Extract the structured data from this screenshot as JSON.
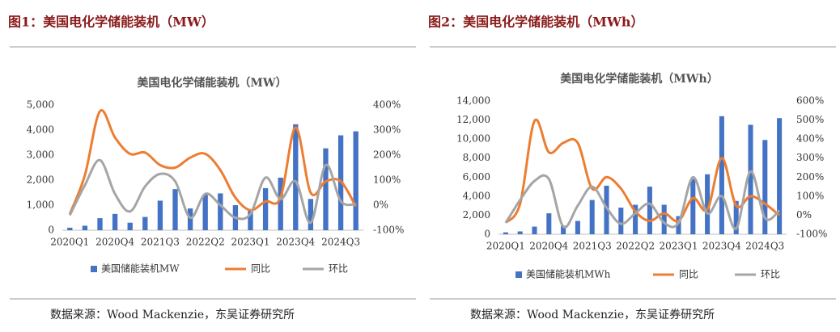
{
  "chart_data": [
    {
      "type": "combo",
      "heading": "图1：美国电化学储能装机（MW）",
      "title": "美国电化学储能装机（MW）",
      "categories": [
        "2020Q1",
        null,
        null,
        "2020Q4",
        null,
        null,
        "2021Q3",
        null,
        null,
        "2022Q2",
        null,
        null,
        "2023Q1",
        null,
        null,
        "2023Q4",
        null,
        null,
        "2024Q3",
        null
      ],
      "series": [
        {
          "name": "美国储能装机MW",
          "type": "bar",
          "color": "#4472c4",
          "values": [
            100,
            180,
            480,
            650,
            300,
            530,
            1180,
            1640,
            870,
            1420,
            1470,
            1000,
            780,
            1680,
            2100,
            4230,
            1250,
            3270,
            3790,
            3950
          ]
        },
        {
          "name": "同比",
          "type": "line",
          "axis": "y2",
          "color": "#ed7d31",
          "values": [
            -35,
            120,
            375,
            270,
            205,
            210,
            160,
            150,
            190,
            205,
            140,
            30,
            -20,
            15,
            30,
            310,
            50,
            95,
            95,
            -5
          ]
        },
        {
          "name": "环比",
          "type": "line",
          "axis": "y2",
          "color": "#a5a5a5",
          "values": [
            -40,
            80,
            180,
            45,
            -25,
            75,
            125,
            95,
            -50,
            45,
            0,
            -50,
            -35,
            110,
            25,
            95,
            -70,
            160,
            16,
            4
          ]
        }
      ],
      "ylim": [
        0,
        5000
      ],
      "yticks": [
        0,
        {
          "value": 1000,
          "label": "1,000"
        },
        {
          "value": 2000,
          "label": "2,000"
        },
        {
          "value": 3000,
          "label": "3,000"
        },
        {
          "value": 4000,
          "label": "4,000"
        },
        {
          "value": 5000,
          "label": "5,000"
        }
      ],
      "y2lim": [
        -100,
        400
      ],
      "y2ticks": [
        {
          "value": -100,
          "label": "-100%"
        },
        {
          "value": 0,
          "label": "0%"
        },
        {
          "value": 100,
          "label": "100%"
        },
        {
          "value": 200,
          "label": "200%"
        },
        {
          "value": 300,
          "label": "300%"
        },
        {
          "value": 400,
          "label": "400%"
        }
      ],
      "source": "数据来源：Wood Mackenzie，东吴证券研究所"
    },
    {
      "type": "combo",
      "heading": "图2：美国电化学储能装机（MWh）",
      "title": "美国电化学储能装机（MWh）",
      "categories": [
        "2020Q1",
        null,
        null,
        "2020Q4",
        null,
        null,
        "2021Q3",
        null,
        null,
        "2022Q2",
        null,
        null,
        "2023Q1",
        null,
        null,
        "2023Q4",
        null,
        null,
        "2024Q3",
        null
      ],
      "series": [
        {
          "name": "美国储能装机MWh",
          "type": "bar",
          "color": "#4472c4",
          "values": [
            200,
            300,
            800,
            2200,
            900,
            1400,
            3600,
            5100,
            2800,
            3100,
            5000,
            3100,
            1900,
            5800,
            6300,
            12400,
            3500,
            11500,
            9900,
            12200
          ]
        },
        {
          "name": "同比",
          "type": "line",
          "axis": "y2",
          "color": "#ed7d31",
          "values": [
            -40,
            60,
            495,
            330,
            380,
            380,
            140,
            200,
            140,
            20,
            -30,
            10,
            -30,
            90,
            30,
            300,
            50,
            100,
            60,
            0
          ]
        },
        {
          "name": "环比",
          "type": "line",
          "axis": "y2",
          "color": "#a5a5a5",
          "values": [
            -40,
            80,
            180,
            190,
            -60,
            50,
            150,
            40,
            -45,
            10,
            60,
            -40,
            -40,
            200,
            10,
            100,
            -70,
            230,
            -15,
            25
          ]
        }
      ],
      "ylim": [
        0,
        14000
      ],
      "yticks": [
        0,
        {
          "value": 2000,
          "label": "2,000"
        },
        {
          "value": 4000,
          "label": "4,000"
        },
        {
          "value": 6000,
          "label": "6,000"
        },
        {
          "value": 8000,
          "label": "8,000"
        },
        {
          "value": 10000,
          "label": "10,000"
        },
        {
          "value": 12000,
          "label": "12,000"
        },
        {
          "value": 14000,
          "label": "14,000"
        }
      ],
      "y2lim": [
        -100,
        600
      ],
      "y2ticks": [
        {
          "value": -100,
          "label": "-100%"
        },
        {
          "value": 0,
          "label": "0%"
        },
        {
          "value": 100,
          "label": "100%"
        },
        {
          "value": 200,
          "label": "200%"
        },
        {
          "value": 300,
          "label": "300%"
        },
        {
          "value": 400,
          "label": "400%"
        },
        {
          "value": 500,
          "label": "500%"
        },
        {
          "value": 600,
          "label": "600%"
        }
      ],
      "source": "数据来源：Wood Mackenzie，东吴证券研究所"
    }
  ]
}
